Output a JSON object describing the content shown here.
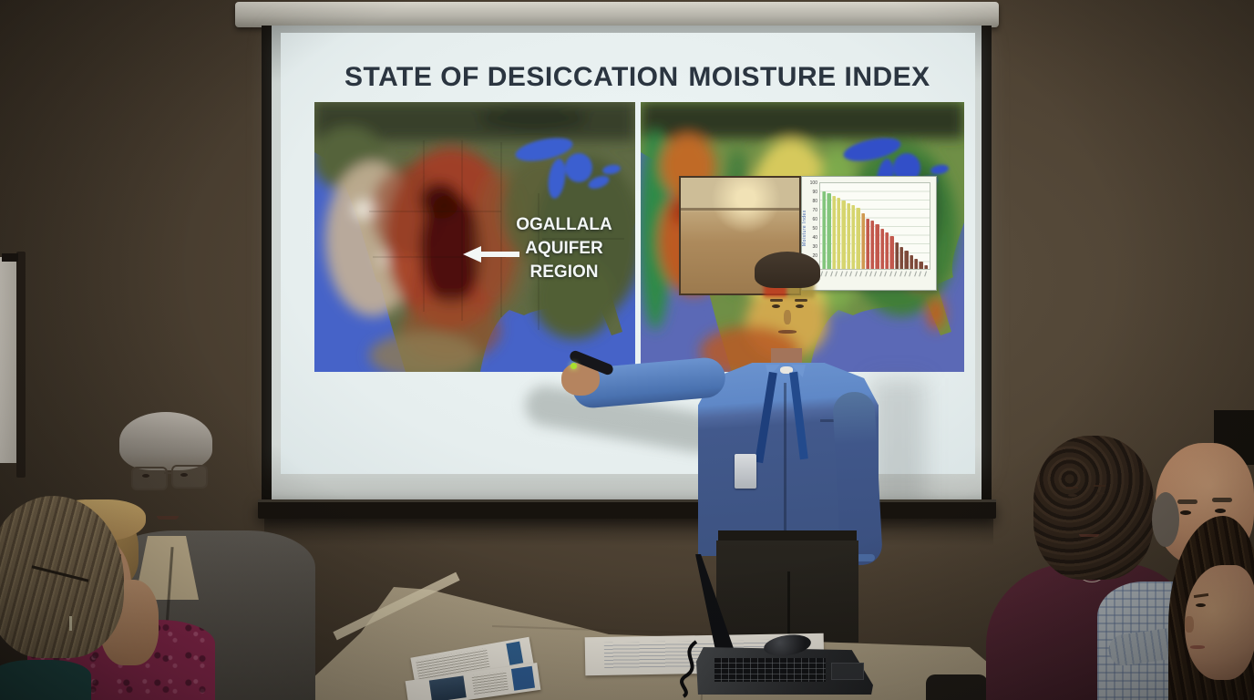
{
  "slide": {
    "title_left": "STATE OF DESICCATION",
    "title_right": "MOISTURE INDEX",
    "aquifer_label_lines": [
      "OGALLALA",
      "AQUIFER",
      "REGION"
    ],
    "title_color": "#2b3540",
    "label_color": "#f3f7f6"
  },
  "chart_data": {
    "type": "bar",
    "title": "",
    "xlabel": "",
    "ylabel": "Moisture Index",
    "ylim": [
      0,
      100
    ],
    "y_ticks": [
      10,
      20,
      30,
      40,
      50,
      60,
      70,
      80,
      90,
      100
    ],
    "grid": true,
    "legend": false,
    "x_tick_labels_legible": false,
    "values": [
      90,
      88,
      85,
      83,
      80,
      77,
      74,
      71,
      65,
      59,
      56,
      52,
      47,
      43,
      38,
      31,
      26,
      21,
      16,
      12,
      8,
      4
    ],
    "colors": [
      "#82c57c",
      "#82c57c",
      "#d6d56e",
      "#d6d56e",
      "#d6d56e",
      "#d6d56e",
      "#d6d56e",
      "#d6d56e",
      "#d09a50",
      "#c2584c",
      "#c2584c",
      "#c2584c",
      "#c2584c",
      "#c2584c",
      "#c2584c",
      "#7d4a3a",
      "#7d4a3a",
      "#7d4a3a",
      "#7d4a3a",
      "#7d4a3a",
      "#7d4a3a",
      "#7d4a3a"
    ]
  },
  "colors": {
    "wall": "#4e4233",
    "slide_background": "#e9f1f1",
    "ocean_left_map": "#4663c8",
    "ocean_right_map": "#5b69b6",
    "drought_red": "#a63c22",
    "drought_core": "#470d06",
    "presenter_shirt_light": "#5f88c7",
    "presenter_shirt_dark": "#3c5280",
    "table": "#b3a68c",
    "remote_led": "#aadf2e"
  }
}
